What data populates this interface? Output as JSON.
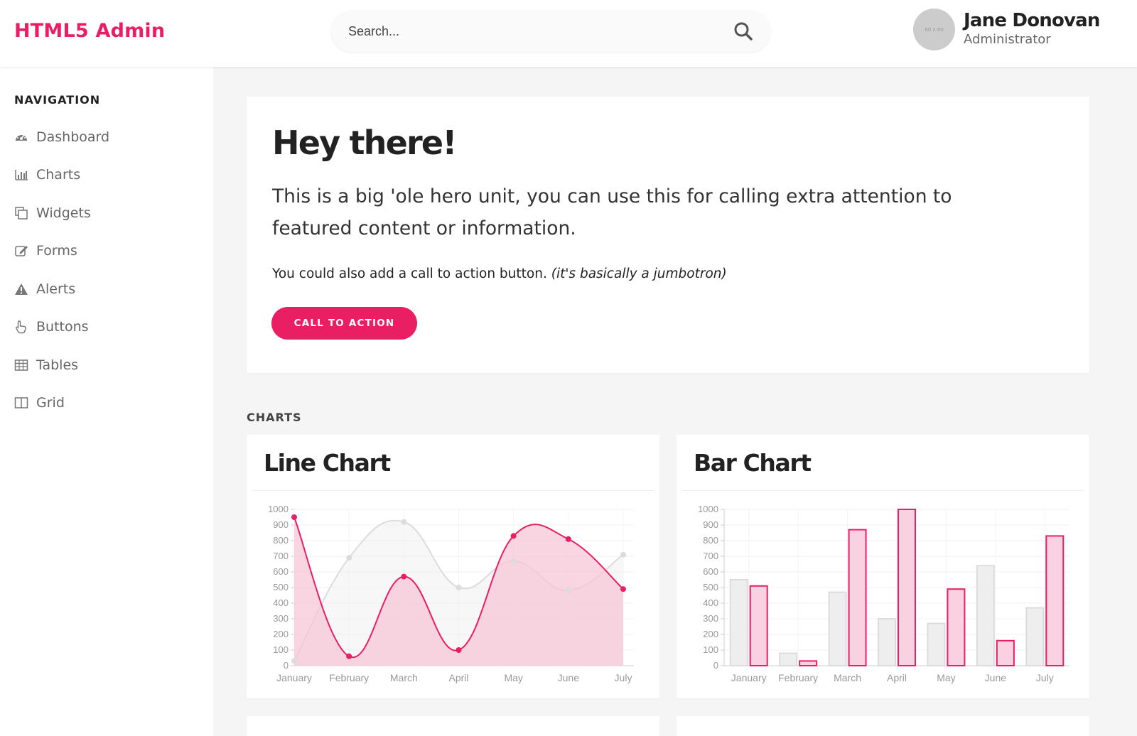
{
  "header": {
    "brand": "HTML5 Admin",
    "search_placeholder": "Search...",
    "user_name": "Jane Donovan",
    "user_role": "Administrator",
    "avatar_text": "60 x 60"
  },
  "sidebar": {
    "title": "NAVIGATION",
    "items": [
      {
        "label": "Dashboard",
        "icon": "dashboard-icon"
      },
      {
        "label": "Charts",
        "icon": "bar-chart-icon"
      },
      {
        "label": "Widgets",
        "icon": "copy-icon"
      },
      {
        "label": "Forms",
        "icon": "edit-icon"
      },
      {
        "label": "Alerts",
        "icon": "warning-icon"
      },
      {
        "label": "Buttons",
        "icon": "hand-pointer-icon"
      },
      {
        "label": "Tables",
        "icon": "table-icon"
      },
      {
        "label": "Grid",
        "icon": "columns-icon"
      }
    ]
  },
  "hero": {
    "title": "Hey there!",
    "lead": "This is a big 'ole hero unit, you can use this for calling extra attention to featured content or information.",
    "sub_text": "You could also add a call to action button.",
    "sub_italic": "(it's basically a jumbotron)",
    "button_label": "CALL TO ACTION"
  },
  "charts_section_title": "CHARTS",
  "colors": {
    "accent": "#e91e63",
    "accent_fill": "#f7c6d7",
    "gray_line": "#dcdcdc",
    "gray_fill": "#eeeeee"
  },
  "chart_data": [
    {
      "type": "line",
      "title": "Line Chart",
      "categories": [
        "January",
        "February",
        "March",
        "April",
        "May",
        "June",
        "July"
      ],
      "ylim": [
        0,
        1000
      ],
      "yticks": [
        0,
        100,
        200,
        300,
        400,
        500,
        600,
        700,
        800,
        900,
        1000
      ],
      "series": [
        {
          "color": "gray",
          "values": [
            30,
            690,
            920,
            500,
            670,
            480,
            710
          ]
        },
        {
          "color": "pink",
          "values": [
            950,
            60,
            570,
            100,
            830,
            810,
            490
          ]
        }
      ]
    },
    {
      "type": "bar",
      "title": "Bar Chart",
      "categories": [
        "January",
        "February",
        "March",
        "April",
        "May",
        "June",
        "July"
      ],
      "ylim": [
        0,
        1000
      ],
      "yticks": [
        0,
        100,
        200,
        300,
        400,
        500,
        600,
        700,
        800,
        900,
        1000
      ],
      "series": [
        {
          "color": "gray",
          "values": [
            550,
            80,
            470,
            300,
            270,
            640,
            370
          ]
        },
        {
          "color": "pink",
          "values": [
            510,
            30,
            870,
            1000,
            490,
            160,
            830
          ]
        }
      ]
    }
  ]
}
